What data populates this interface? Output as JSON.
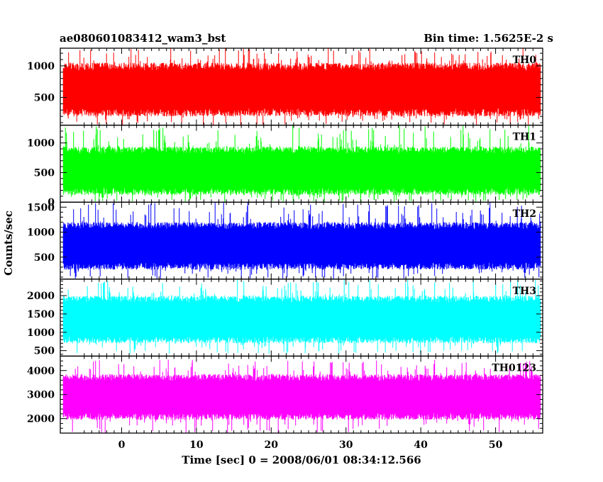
{
  "header": {
    "left_title": "ae080601083412_wam3_bst",
    "right_title": "Bin time: 1.5625E-2 s"
  },
  "chart_data": {
    "type": "line",
    "style": "histogram-lightcurve",
    "xlabel": "Time [sec] 0 = 2008/06/01 08:34:12.566",
    "ylabel": "Counts/sec",
    "xlim": [
      -8.2,
      56.3
    ],
    "x_data_range": [
      -7.8,
      56.0
    ],
    "x_ticks": [
      0,
      10,
      20,
      30,
      40,
      50
    ],
    "x_tick_labels": [
      "0",
      "10",
      "20",
      "30",
      "40",
      "50"
    ],
    "bin_time_sec": 0.015625,
    "panels": [
      {
        "name": "TH0",
        "color": "#ff0000",
        "ylim": [
          60,
          1280
        ],
        "y_ticks": [
          500,
          1000
        ],
        "y_tick_labels": [
          "500",
          "1000"
        ],
        "typical_range": [
          200,
          1050
        ],
        "extremes": [
          60,
          1280
        ]
      },
      {
        "name": "TH1",
        "color": "#00ff00",
        "ylim": [
          0,
          1300
        ],
        "y_ticks": [
          0,
          500,
          1000
        ],
        "y_tick_labels": [
          "0",
          "500",
          "1000"
        ],
        "typical_range": [
          120,
          940
        ],
        "extremes": [
          0,
          1300
        ]
      },
      {
        "name": "TH2",
        "color": "#0000ff",
        "ylim": [
          60,
          1600
        ],
        "y_ticks": [
          500,
          1000,
          1500
        ],
        "y_tick_labels": [
          "500",
          "1000",
          "1500"
        ],
        "typical_range": [
          250,
          1200
        ],
        "extremes": [
          60,
          1600
        ]
      },
      {
        "name": "TH3",
        "color": "#00ffff",
        "ylim": [
          350,
          2450
        ],
        "y_ticks": [
          500,
          1000,
          1500,
          2000
        ],
        "y_tick_labels": [
          "500",
          "1000",
          "1500",
          "2000"
        ],
        "typical_range": [
          700,
          2000
        ],
        "extremes": [
          400,
          2450
        ]
      },
      {
        "name": "TH0123",
        "color": "#ff00ff",
        "ylim": [
          1400,
          4600
        ],
        "y_ticks": [
          2000,
          3000,
          4000
        ],
        "y_tick_labels": [
          "2000",
          "3000",
          "4000"
        ],
        "typical_range": [
          1950,
          3850
        ],
        "extremes": [
          1400,
          4450
        ]
      }
    ]
  }
}
